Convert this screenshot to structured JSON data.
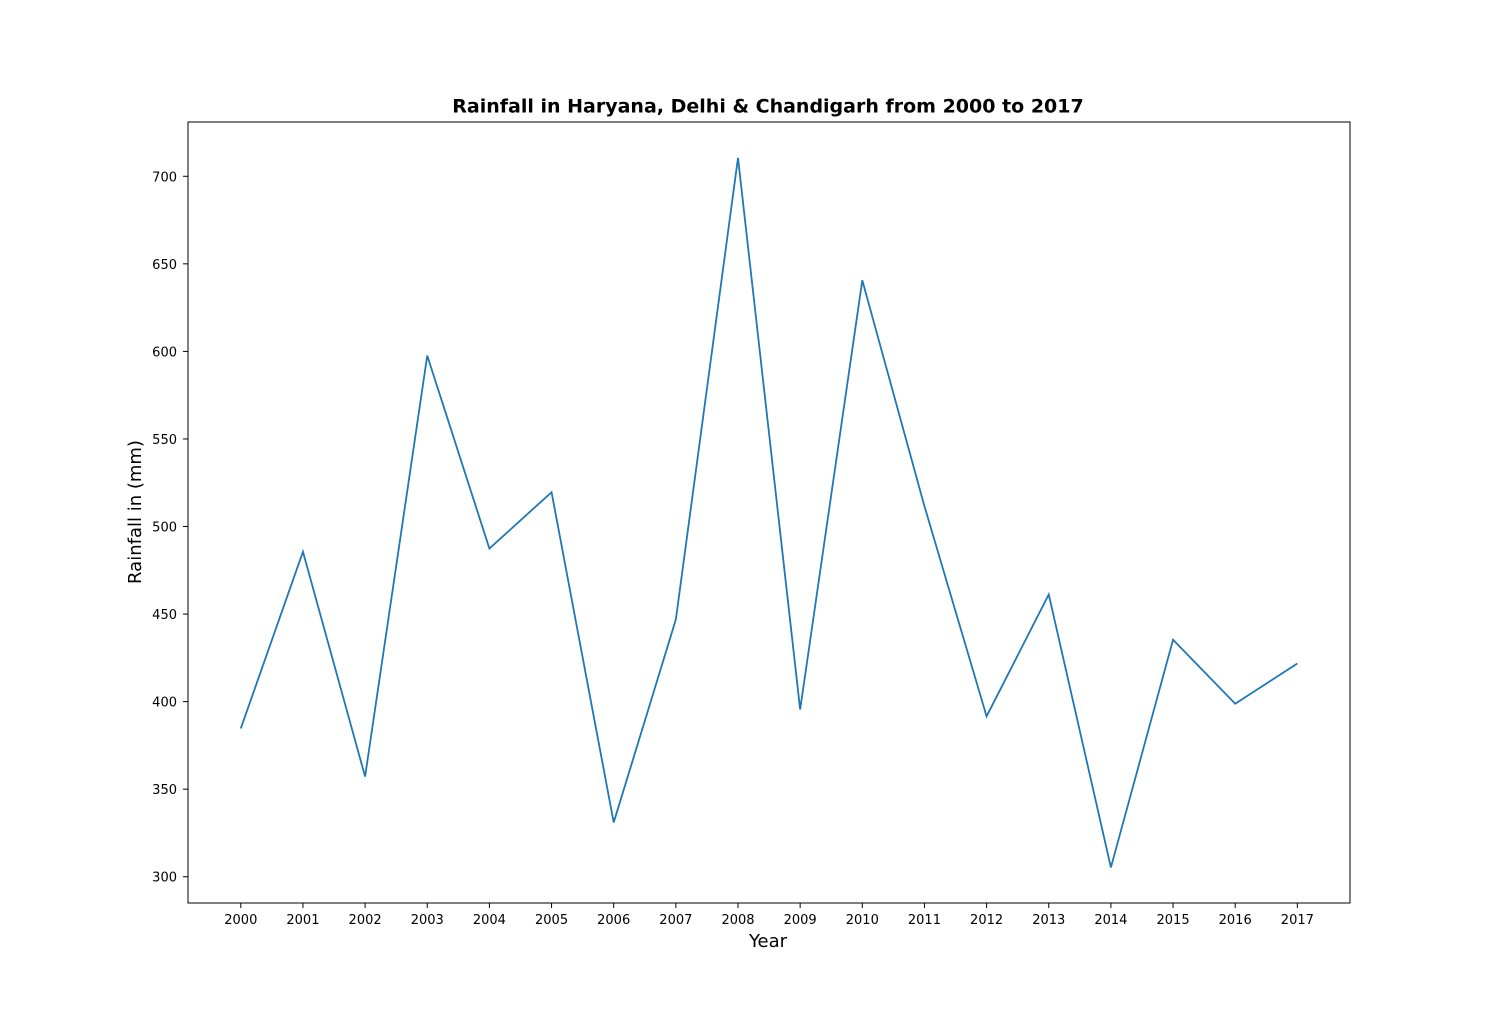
{
  "chart_data": {
    "type": "line",
    "title": "Rainfall in Haryana, Delhi & Chandigarh from 2000 to 2017",
    "xlabel": "Year",
    "ylabel": "Rainfall in (mm)",
    "x": [
      "2000",
      "2001",
      "2002",
      "2003",
      "2004",
      "2005",
      "2006",
      "2007",
      "2008",
      "2009",
      "2010",
      "2011",
      "2012",
      "2013",
      "2014",
      "2015",
      "2016",
      "2017"
    ],
    "series": [
      {
        "values": [
          384.7,
          485.6,
          357.2,
          597.6,
          487.4,
          519.6,
          331.0,
          446.9,
          710.5,
          395.5,
          640.6,
          511.6,
          391.6,
          461.2,
          305.3,
          435.3,
          398.8,
          421.8
        ],
        "color": "#1f77b4"
      }
    ],
    "y_ticks": [
      300,
      350,
      400,
      450,
      500,
      550,
      600,
      650,
      700
    ],
    "ylim": [
      285.0,
      731.0
    ],
    "grid": false,
    "legend": "none"
  }
}
